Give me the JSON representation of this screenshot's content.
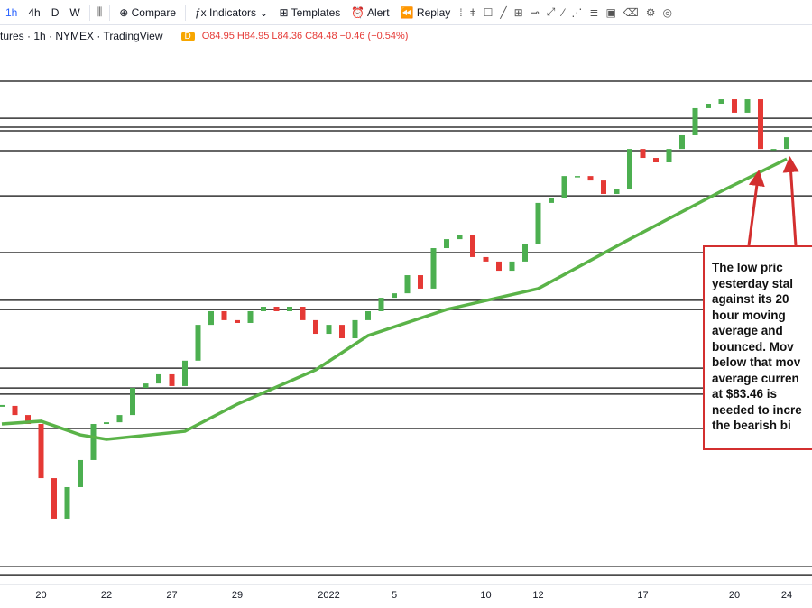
{
  "toolbar": {
    "intervals": [
      "1h",
      "4h",
      "D",
      "W"
    ],
    "compare": "Compare",
    "indicators": "Indicators",
    "templates": "Templates",
    "alert": "Alert",
    "replay": "Replay"
  },
  "header": {
    "symbol": "tures · 1h · NYMEX · TradingView",
    "badge": "D",
    "ohlc": "O84.95 H84.95 L84.36 C84.48 −0.46 (−0.54%)"
  },
  "chart_data": {
    "type": "candlestick",
    "categories": [
      null,
      null,
      null,
      "20",
      null,
      null,
      null,
      null,
      "22",
      null,
      null,
      null,
      null,
      "27",
      null,
      null,
      null,
      null,
      "29",
      null,
      null,
      null,
      null,
      null,
      null,
      "2022",
      null,
      null,
      null,
      null,
      "5",
      null,
      null,
      null,
      null,
      null,
      null,
      "10",
      null,
      null,
      null,
      "12",
      null,
      null,
      null,
      null,
      null,
      null,
      null,
      "17",
      null,
      null,
      null,
      null,
      null,
      null,
      "20",
      null,
      null,
      null,
      "24"
    ],
    "close": [
      71.88,
      71.45,
      71.03,
      68.49,
      66.59,
      68.07,
      69.34,
      71.03,
      71.11,
      71.45,
      72.72,
      72.93,
      73.36,
      72.81,
      74.0,
      75.68,
      76.32,
      75.9,
      75.77,
      76.32,
      76.53,
      76.32,
      76.53,
      75.9,
      75.26,
      75.68,
      75.05,
      75.9,
      76.32,
      76.95,
      77.16,
      78.01,
      77.38,
      79.28,
      79.7,
      79.91,
      78.86,
      78.65,
      78.22,
      78.65,
      79.49,
      81.4,
      81.61,
      82.66,
      82.66,
      82.45,
      81.82,
      82.03,
      83.93,
      83.51,
      83.3,
      83.93,
      84.57,
      85.84,
      86.05,
      86.26,
      85.63,
      86.26,
      83.93,
      83.93,
      84.48
    ],
    "up_color": "#4caf50",
    "down_color": "#e53935",
    "moving_average": {
      "x": [
        0,
        3,
        6,
        8,
        14,
        18,
        24,
        28,
        34,
        41,
        48,
        55,
        60
      ],
      "values": [
        71.03,
        71.16,
        70.52,
        70.31,
        70.69,
        71.96,
        73.57,
        75.18,
        76.4,
        77.38,
        79.7,
        81.95,
        83.46
      ],
      "color": "#5ab348"
    },
    "levels": [
      87.11,
      85.37,
      84.95,
      84.78,
      83.85,
      81.73,
      79.07,
      76.83,
      76.4,
      73.65,
      72.72,
      72.43,
      70.82,
      64.34,
      63.96
    ],
    "level_color": "#333333",
    "ylim": [
      63.5,
      88.8
    ],
    "annotation": [
      "The low pric",
      "yesterday stal",
      "against its 20",
      "hour moving",
      "average and",
      "bounced.  Mov",
      "below that mov",
      "average curren",
      "at $83.46 is",
      "needed to incre",
      "the bearish bi"
    ],
    "annotation_color": "#d32f2f"
  }
}
